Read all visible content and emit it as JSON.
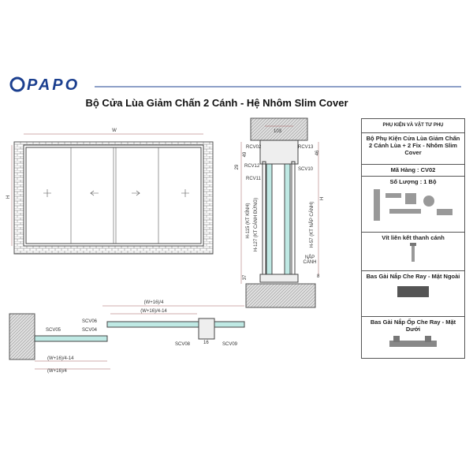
{
  "header": {
    "logo": "PAPO",
    "title": "Bộ Cửa Lùa Giảm Chấn 2 Cánh  - Hệ Nhôm Slim Cover"
  },
  "elevation": {
    "width_label": "W",
    "height_label": "H"
  },
  "section": {
    "labels": [
      "103",
      "RCV02",
      "RCV13",
      "49",
      "46",
      "RCV12",
      "29",
      "SCV10",
      "RCV11",
      "H-115 (KT KÍNH)",
      "H-127 (KT CÁNH ĐỨNG)",
      "H-57 (KT NẮP CÁNH)",
      "H",
      "NẮP CÁNH",
      "37",
      "8"
    ]
  },
  "plan": {
    "labels": [
      "(W+16)/4",
      "(W+16)/4-14",
      "SCV06",
      "SCV04",
      "SCV05",
      "SCV08",
      "16",
      "SCV09",
      "(W+16)/4-14",
      "(W+16)/4"
    ]
  },
  "panel": {
    "header": "PHỤ KIỆN VÀ VẬT TƯ PHỤ",
    "items": [
      "Bộ Phụ Kiện Cửa Lùa Giảm Chấn 2 Cánh Lùa + 2 Fix - Nhôm Slim Cover",
      "Mã Hàng : CV02",
      "Số Lượng : 1 Bộ",
      "Vít liên kết thanh cánh",
      "Bas Gài Nắp Che Ray - Mặt Ngoài",
      "Bas Gài Nắp Ốp Che Ray - Mặt Dưới"
    ]
  }
}
